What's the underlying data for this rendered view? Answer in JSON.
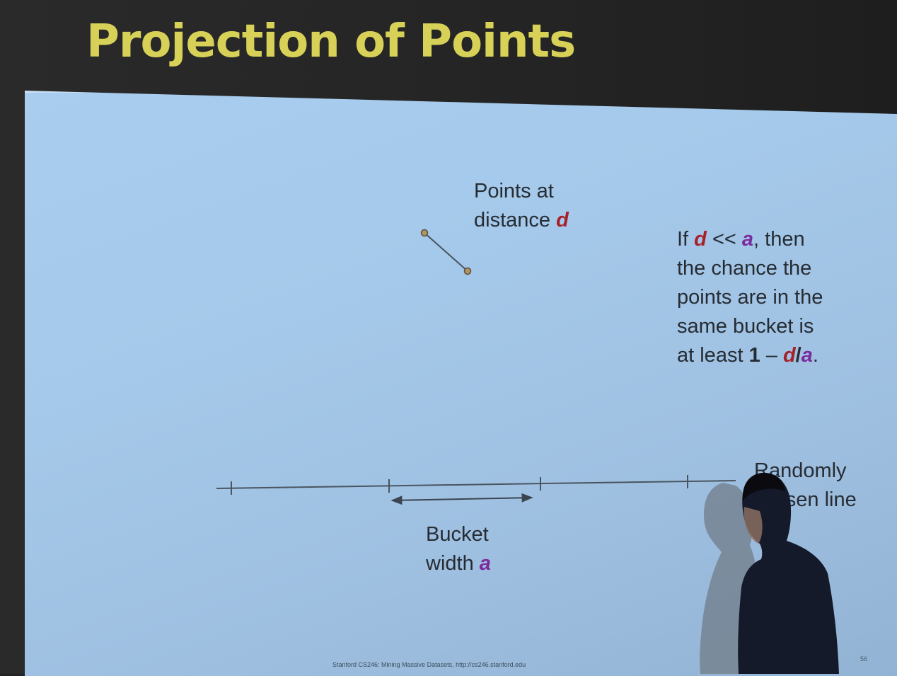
{
  "slide": {
    "title": "Projection of Points",
    "footer": "Stanford CS246: Mining Massive Datasets, http://cs246.stanford.edu",
    "page_number": "56"
  },
  "points_label": {
    "line1": "Points at",
    "line2_prefix": "distance ",
    "var": "d"
  },
  "condition_text": {
    "line1_prefix": "If ",
    "var_d": "d",
    "op": " << ",
    "var_a": "a",
    "line1_suffix": ", then",
    "line2": "the chance the",
    "line3": "points are in the",
    "line4": "same bucket is",
    "line5_prefix": "at least ",
    "one": "1",
    "dash": " – ",
    "var_d2": "d",
    "slash": "/",
    "var_a2": "a",
    "period": "."
  },
  "bucket_label": {
    "line1": "Bucket",
    "line2_prefix": "width ",
    "var": "a"
  },
  "line_label": {
    "line1": "Randomly",
    "line2": "chosen line"
  },
  "colors": {
    "title": "#d8d158",
    "slide_bg": "#a5c9ea",
    "var_d": "#a8202a",
    "var_a": "#7b2c9c",
    "text": "#262c33",
    "line": "#4a5560",
    "point_fill": "#b09460"
  }
}
